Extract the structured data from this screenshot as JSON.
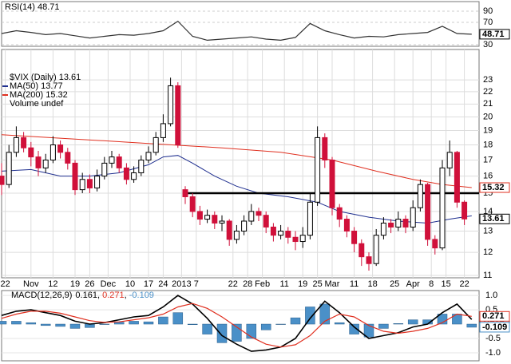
{
  "chart_data": [
    {
      "type": "line",
      "title": "RSI(14) 48.71",
      "xlim": [
        0,
        130
      ],
      "ylim": [
        27.1,
        107.1
      ],
      "yticks": [
        90,
        70,
        30
      ],
      "color": "#333333",
      "x": [
        0,
        4,
        8,
        12,
        16,
        20,
        24,
        28,
        32,
        36,
        40,
        44,
        48,
        52,
        56,
        60,
        64,
        68,
        72,
        76,
        80,
        84,
        88,
        92,
        96,
        100,
        104,
        108,
        112,
        116,
        120,
        124,
        128
      ],
      "values": [
        50,
        55,
        52,
        48,
        50,
        46,
        42,
        45,
        48,
        47,
        50,
        55,
        72,
        45,
        38,
        40,
        42,
        44,
        40,
        38,
        43,
        68,
        55,
        48,
        42,
        45,
        44,
        48,
        50,
        52,
        63,
        50,
        48.71
      ],
      "last_value": {
        "value": 48.71,
        "label": "48.71"
      }
    },
    {
      "type": "candlestick",
      "title": "$VIX (Daily) 13.61",
      "note": "Volume undef",
      "log_scale": true,
      "grid": true,
      "xlim": [
        0,
        130
      ],
      "ylim": [
        10.9,
        25.8
      ],
      "yticks": [
        11,
        12,
        13,
        14,
        15,
        16,
        17,
        18,
        19,
        20,
        21,
        22,
        23
      ],
      "up_color": "#000000",
      "down_color": "#d0103a",
      "xticks": [
        {
          "value": 1,
          "label": "22"
        },
        {
          "value": 8,
          "label": "Nov"
        },
        {
          "value": 14,
          "label": "12"
        },
        {
          "value": 20,
          "label": "19"
        },
        {
          "value": 24,
          "label": "26"
        },
        {
          "value": 29,
          "label": "Dec"
        },
        {
          "value": 35,
          "label": "10"
        },
        {
          "value": 40,
          "label": "17"
        },
        {
          "value": 44,
          "label": "24"
        },
        {
          "value": 49,
          "label": "2013"
        },
        {
          "value": 53,
          "label": "7"
        },
        {
          "value": 63,
          "label": "22"
        },
        {
          "value": 67,
          "label": "28"
        },
        {
          "value": 71,
          "label": "Feb"
        },
        {
          "value": 77,
          "label": "11"
        },
        {
          "value": 82,
          "label": "19"
        },
        {
          "value": 86,
          "label": "25"
        },
        {
          "value": 90,
          "label": "Mar"
        },
        {
          "value": 96,
          "label": "11"
        },
        {
          "value": 101,
          "label": "18"
        },
        {
          "value": 107,
          "label": "25"
        },
        {
          "value": 112,
          "label": "Apr"
        },
        {
          "value": 117,
          "label": "8"
        },
        {
          "value": 121,
          "label": "15"
        },
        {
          "value": 126,
          "label": "22"
        }
      ],
      "x": [
        0,
        2,
        4,
        6,
        8,
        10,
        12,
        14,
        16,
        18,
        20,
        22,
        24,
        26,
        28,
        30,
        32,
        34,
        36,
        38,
        40,
        42,
        44,
        46,
        48,
        50,
        52,
        54,
        56,
        58,
        60,
        62,
        64,
        66,
        68,
        70,
        72,
        74,
        76,
        78,
        80,
        82,
        84,
        86,
        88,
        90,
        92,
        94,
        96,
        98,
        100,
        102,
        104,
        106,
        108,
        110,
        112,
        114,
        116,
        118,
        120,
        122,
        124,
        126
      ],
      "open": [
        16.0,
        15.5,
        17.5,
        18.5,
        17.8,
        17.2,
        16.5,
        17.0,
        18.0,
        17.5,
        16.8,
        15.2,
        15.8,
        15.3,
        16.0,
        16.8,
        17.2,
        16.5,
        15.8,
        16.2,
        17.0,
        17.5,
        18.5,
        19.5,
        22.5,
        15.2,
        14.8,
        14.0,
        13.6,
        13.8,
        13.4,
        13.5,
        12.6,
        13.0,
        13.5,
        14.0,
        13.8,
        13.2,
        12.8,
        13.0,
        12.7,
        12.5,
        12.8,
        14.5,
        18.5,
        17.0,
        14.2,
        13.6,
        13.0,
        12.4,
        11.8,
        11.5,
        12.8,
        13.4,
        13.2,
        13.6,
        13.2,
        14.2,
        15.5,
        12.6,
        12.2,
        16.5,
        17.5,
        14.5
      ],
      "high": [
        16.8,
        18.0,
        19.3,
        18.9,
        18.2,
        17.6,
        17.4,
        18.6,
        18.3,
        17.8,
        17.0,
        16.2,
        16.1,
        16.4,
        17.2,
        17.6,
        17.4,
        16.8,
        16.6,
        17.3,
        17.9,
        18.9,
        20.2,
        23.2,
        22.8,
        15.4,
        15.0,
        14.3,
        14.1,
        14.0,
        13.8,
        13.6,
        13.3,
        13.8,
        14.4,
        14.2,
        14.0,
        13.4,
        13.3,
        13.2,
        13.0,
        13.2,
        15.0,
        19.3,
        18.8,
        17.2,
        14.4,
        13.8,
        13.2,
        12.6,
        12.0,
        13.1,
        13.7,
        13.6,
        14.0,
        13.8,
        14.6,
        15.8,
        15.6,
        12.8,
        17.0,
        18.3,
        17.6,
        14.6
      ],
      "low": [
        14.9,
        15.3,
        17.2,
        17.5,
        16.6,
        16.0,
        16.2,
        16.8,
        17.1,
        16.4,
        14.9,
        15.0,
        15.0,
        15.1,
        15.8,
        16.5,
        16.2,
        15.5,
        15.6,
        16.0,
        16.8,
        17.3,
        18.2,
        19.3,
        17.8,
        14.4,
        13.7,
        13.3,
        13.4,
        13.1,
        13.0,
        12.3,
        12.4,
        12.8,
        13.3,
        13.5,
        12.9,
        12.5,
        12.6,
        12.4,
        12.1,
        12.2,
        12.6,
        14.3,
        16.5,
        13.8,
        13.2,
        12.7,
        12.0,
        11.4,
        11.2,
        11.4,
        12.6,
        12.9,
        13.0,
        12.9,
        13.0,
        14.0,
        12.3,
        11.9,
        12.1,
        16.0,
        14.2,
        13.3
      ],
      "close": [
        15.5,
        17.5,
        18.5,
        17.8,
        17.2,
        16.5,
        17.0,
        18.0,
        17.5,
        16.8,
        15.2,
        15.8,
        15.3,
        16.0,
        16.8,
        17.2,
        16.5,
        15.8,
        16.2,
        17.0,
        17.5,
        18.5,
        19.5,
        22.5,
        18.0,
        14.8,
        14.0,
        13.6,
        13.8,
        13.4,
        13.5,
        12.6,
        13.0,
        13.5,
        14.0,
        13.8,
        13.2,
        12.8,
        13.0,
        12.7,
        12.5,
        12.8,
        14.5,
        18.5,
        17.0,
        14.2,
        13.6,
        13.0,
        12.4,
        11.8,
        11.5,
        12.8,
        13.4,
        13.2,
        13.6,
        13.2,
        14.2,
        15.5,
        12.6,
        12.2,
        16.5,
        17.5,
        14.5,
        13.61
      ],
      "overlays": [
        {
          "name": "MA(50) 13.77",
          "color": "#1f2f8f",
          "x": [
            0,
            8,
            16,
            24,
            32,
            40,
            44,
            48,
            52,
            58,
            64,
            70,
            78,
            86,
            92,
            100,
            108,
            116,
            122,
            128
          ],
          "values": [
            16.3,
            16.4,
            16.0,
            16.0,
            16.2,
            16.7,
            17.2,
            17.3,
            16.8,
            16.0,
            15.4,
            15.0,
            14.8,
            14.5,
            14.0,
            13.7,
            13.5,
            13.4,
            13.6,
            13.77
          ]
        },
        {
          "name": "MA(200) 15.32",
          "color": "#e03020",
          "x": [
            0,
            20,
            40,
            60,
            76,
            90,
            102,
            112,
            120,
            128
          ],
          "values": [
            18.7,
            18.4,
            18.1,
            17.8,
            17.5,
            17.0,
            16.3,
            15.8,
            15.5,
            15.32
          ]
        }
      ],
      "hline": {
        "value": 15,
        "x": [
          50,
          130
        ],
        "color": "#000000"
      },
      "last_value_labels": [
        {
          "value": 15.32,
          "label": "15.32",
          "color": "#e03020"
        },
        {
          "value": 13.61,
          "label": "13.61",
          "color": "#000000"
        }
      ]
    },
    {
      "type": "macd",
      "title": "MACD(12,26,9)",
      "legend_separator": ", ",
      "xlim": [
        0,
        130
      ],
      "ylim": [
        -1.28,
        1.17
      ],
      "yticks": [
        {
          "value": 1,
          "label": "1.0"
        },
        {
          "value": 0.5,
          "label": "0.5"
        },
        {
          "value": -0.5,
          "label": "-0.5"
        },
        {
          "value": -1,
          "label": "-1.0"
        }
      ],
      "x": [
        0,
        4,
        8,
        12,
        16,
        20,
        24,
        28,
        32,
        36,
        40,
        44,
        48,
        52,
        56,
        60,
        64,
        68,
        72,
        76,
        80,
        84,
        88,
        92,
        96,
        100,
        104,
        108,
        112,
        116,
        120,
        124,
        128
      ],
      "series": [
        {
          "name": "0.161",
          "color": "#000000",
          "values": [
            0.3,
            0.45,
            0.5,
            0.4,
            0.3,
            0.1,
            0.0,
            0.05,
            0.15,
            0.25,
            0.3,
            0.6,
            1.0,
            0.7,
            0.2,
            -0.4,
            -0.7,
            -0.95,
            -0.9,
            -0.8,
            -0.5,
            0.2,
            0.8,
            0.4,
            -0.1,
            -0.5,
            -0.4,
            -0.3,
            -0.1,
            0.0,
            0.4,
            0.7,
            0.161
          ]
        },
        {
          "name": "0.271",
          "color": "#e03020",
          "values": [
            0.2,
            0.35,
            0.45,
            0.45,
            0.38,
            0.25,
            0.12,
            0.06,
            0.08,
            0.15,
            0.22,
            0.35,
            0.6,
            0.72,
            0.55,
            0.25,
            -0.1,
            -0.45,
            -0.7,
            -0.8,
            -0.72,
            -0.4,
            0.1,
            0.35,
            0.25,
            -0.05,
            -0.25,
            -0.32,
            -0.25,
            -0.15,
            0.05,
            0.35,
            0.271
          ]
        },
        {
          "name": "-0.109",
          "color": "#4a90c8",
          "bars": true,
          "values": [
            0.1,
            0.1,
            0.05,
            -0.05,
            -0.08,
            -0.15,
            -0.12,
            -0.01,
            0.07,
            0.1,
            0.08,
            0.25,
            0.4,
            -0.02,
            -0.35,
            -0.65,
            -0.6,
            -0.5,
            -0.2,
            0,
            0.22,
            0.6,
            0.7,
            0.05,
            -0.35,
            -0.45,
            -0.15,
            0.02,
            0.15,
            0.15,
            0.35,
            0.35,
            -0.109
          ]
        }
      ]
    }
  ]
}
